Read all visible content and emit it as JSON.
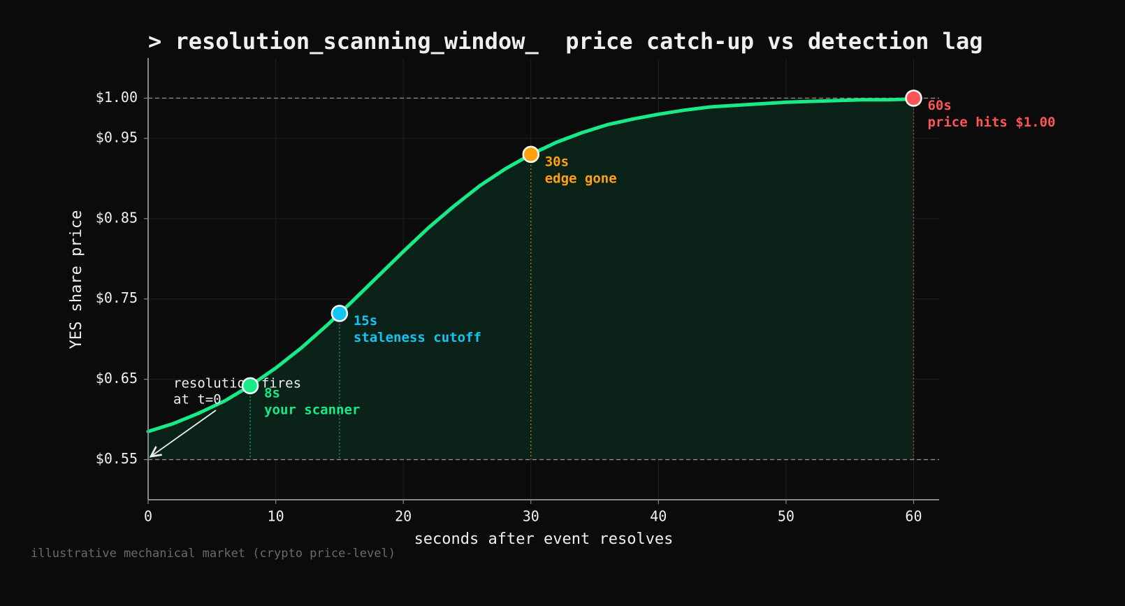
{
  "chart_data": {
    "type": "line",
    "title": "> resolution_scanning_window_  price catch-up vs detection lag",
    "x_label": "seconds after event resolves",
    "y_label": "YES share price",
    "footnote": "illustrative mechanical market (crypto price-level)",
    "x": [
      0,
      2,
      4,
      6,
      8,
      10,
      12,
      14,
      16,
      18,
      20,
      22,
      24,
      26,
      28,
      30,
      32,
      34,
      36,
      38,
      40,
      42,
      44,
      46,
      48,
      50,
      52,
      54,
      56,
      58,
      60
    ],
    "values": [
      0.585,
      0.595,
      0.608,
      0.623,
      0.642,
      0.664,
      0.689,
      0.717,
      0.747,
      0.778,
      0.809,
      0.839,
      0.866,
      0.891,
      0.912,
      0.93,
      0.945,
      0.957,
      0.967,
      0.974,
      0.98,
      0.985,
      0.989,
      0.991,
      0.993,
      0.995,
      0.996,
      0.997,
      0.998,
      0.998,
      0.999
    ],
    "line_color": "#17ea86",
    "fill_color": "#0a2217",
    "fill_baseline": 0.55,
    "hlines": [
      1.0,
      0.55
    ],
    "xlim": [
      0,
      62
    ],
    "ylim": [
      0.5,
      1.05
    ],
    "xticks": [
      0,
      10,
      20,
      30,
      40,
      50,
      60
    ],
    "yticks": [
      {
        "value": 0.55,
        "label": "$0.55"
      },
      {
        "value": 0.65,
        "label": "$0.65"
      },
      {
        "value": 0.75,
        "label": "$0.75"
      },
      {
        "value": 0.85,
        "label": "$0.85"
      },
      {
        "value": 0.95,
        "label": "$0.95"
      },
      {
        "value": 1.0,
        "label": "$1.00"
      }
    ],
    "grid": true,
    "points": [
      {
        "x": 8,
        "y": 0.642,
        "color": "#17ea86",
        "label": "8s",
        "note": "your scanner"
      },
      {
        "x": 15,
        "y": 0.732,
        "color": "#14c4f5",
        "label": "15s",
        "note": "staleness cutoff"
      },
      {
        "x": 30,
        "y": 0.93,
        "color": "#ffa00d",
        "label": "30s",
        "note": "edge gone"
      },
      {
        "x": 60,
        "y": 1.0,
        "color": "#ff5555",
        "label": "60s",
        "note": "price hits $1.00"
      }
    ],
    "annotation": [
      "resolution fires",
      "at t=0"
    ]
  }
}
